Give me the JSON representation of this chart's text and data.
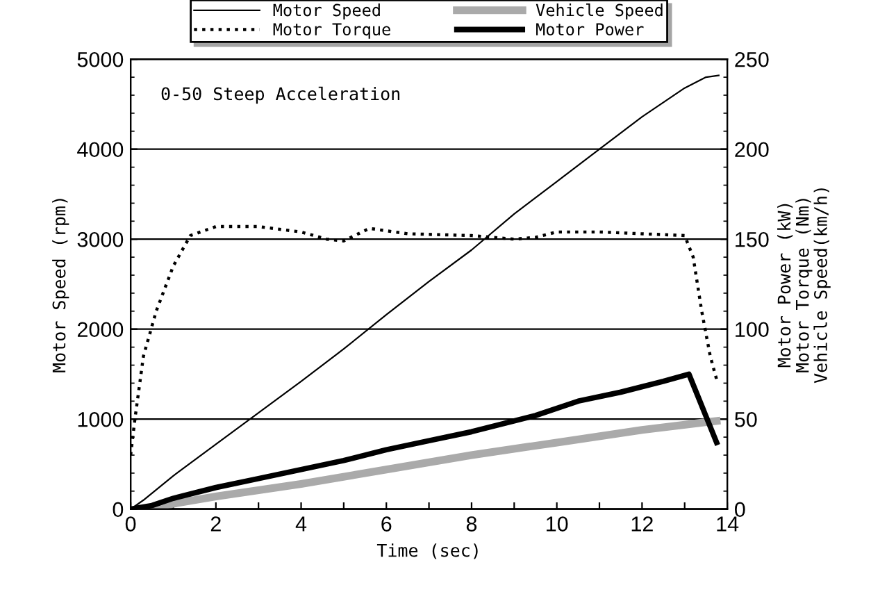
{
  "chart_data": {
    "type": "line",
    "annotations": [
      "0-50 Steep Acceleration"
    ],
    "xlabel": "Time (sec)",
    "ylabel": "Motor Speed (rpm)",
    "y2label": "Motor Power (kW)\nMotor Torque (Nm)\nVehicle Speed(km/h)",
    "xlim": [
      0,
      14
    ],
    "xticks": [
      0,
      {
        "value": 1,
        "label": null
      },
      2,
      {
        "value": 3,
        "label": null
      },
      4,
      {
        "value": 5,
        "label": null
      },
      6,
      {
        "value": 7,
        "label": null
      },
      8,
      {
        "value": 9,
        "label": null
      },
      10,
      {
        "value": 11,
        "label": null
      },
      12,
      {
        "value": 13,
        "label": null
      },
      14
    ],
    "ylim": [
      0,
      5000
    ],
    "yticks": [
      0,
      1000,
      2000,
      3000,
      4000,
      5000
    ],
    "y2lim": [
      0,
      250
    ],
    "y2ticks": [
      0,
      50,
      100,
      150,
      200,
      250
    ],
    "grid": "y",
    "legend": "top",
    "marker": "none",
    "series": [
      {
        "name": "Motor Speed",
        "color": "#000000",
        "line_style": "solid",
        "x": [
          0,
          0.3,
          1,
          2,
          3,
          4,
          5,
          6,
          7,
          8,
          9,
          10,
          11,
          12,
          13,
          13.5,
          13.8
        ],
        "values": [
          0,
          100,
          370,
          720,
          1070,
          1420,
          1780,
          2160,
          2530,
          2880,
          3280,
          3640,
          4000,
          4360,
          4680,
          4800,
          4820
        ]
      },
      {
        "name": "Motor Torque",
        "color": "#000000",
        "line_style": "dotted",
        "axis": "y2",
        "x": [
          0,
          0.1,
          0.3,
          0.6,
          1.0,
          1.4,
          2,
          3,
          4,
          4.6,
          5.0,
          5.6,
          6.5,
          8,
          9,
          9.5,
          10,
          11,
          12,
          13.0,
          13.2,
          13.4,
          13.6,
          13.75
        ],
        "values": [
          30,
          50,
          85,
          110,
          135,
          152,
          157,
          157,
          154,
          150,
          149,
          156,
          153,
          152,
          150,
          151,
          154,
          154,
          153,
          152,
          140,
          110,
          85,
          72
        ]
      },
      {
        "name": "Vehicle Speed",
        "color": "#aaaaaa",
        "line_style": "solid",
        "axis": "y2",
        "x": [
          0.3,
          1,
          2,
          4,
          6,
          8,
          10,
          12,
          13.75
        ],
        "values": [
          0,
          3,
          7,
          14,
          22,
          30,
          37,
          44,
          49
        ]
      },
      {
        "name": "Motor Power",
        "color": "#000000",
        "line_style": "solid",
        "axis": "y2",
        "x": [
          0,
          0.5,
          1,
          2,
          3,
          4,
          5,
          6,
          7,
          8,
          9,
          9.5,
          10.5,
          11.5,
          12.5,
          13.1,
          13.75
        ],
        "values": [
          0,
          2,
          6,
          12,
          17,
          22,
          27,
          33,
          38,
          43,
          49,
          52,
          60,
          65,
          71,
          75,
          37
        ]
      }
    ]
  }
}
